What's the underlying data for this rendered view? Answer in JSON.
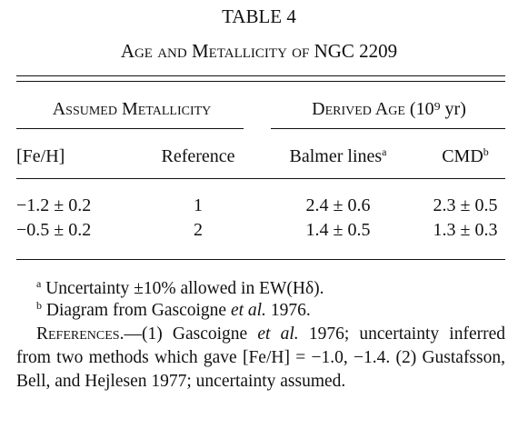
{
  "title": "TABLE 4",
  "subtitle": "Age and Metallicity of NGC 2209",
  "table": {
    "group_headers": [
      {
        "text": "Assumed Metallicity"
      },
      {
        "text": "Derived Age",
        "unit": "(10⁹ yr)"
      }
    ],
    "columns": [
      {
        "text": "[Fe/H]"
      },
      {
        "text": "Reference"
      },
      {
        "text": "Balmer lines",
        "note": "a"
      },
      {
        "text": "CMD",
        "note": "b"
      }
    ],
    "rows": [
      [
        "−1.2 ± 0.2",
        "1",
        "2.4 ± 0.6",
        "2.3 ± 0.5"
      ],
      [
        "−0.5 ± 0.2",
        "2",
        "1.4 ± 0.5",
        "1.3 ± 0.3"
      ]
    ]
  },
  "notes": [
    {
      "marker": "a",
      "parts": [
        "Uncertainty ±10% allowed in EW(Hδ)."
      ]
    },
    {
      "marker": "b",
      "parts": [
        "Diagram from Gascoigne ",
        "et al.",
        " 1976."
      ]
    }
  ],
  "references": {
    "label": "References.—",
    "parts": [
      "(1) Gascoigne ",
      "et al.",
      " 1976; uncertainty inferred from two methods which gave [Fe/H] = −1.0, −1.4. (2) Gustafsson, Bell, and Hejlesen 1977; uncertainty assumed."
    ]
  }
}
